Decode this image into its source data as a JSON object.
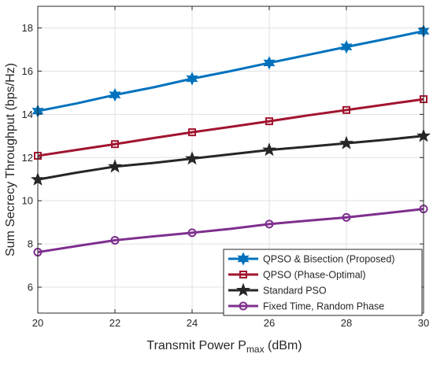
{
  "chart_data": {
    "type": "line",
    "title": "",
    "xlabel": "Transmit Power P",
    "xlabel_subscript": "max",
    "xlabel_suffix": " (dBm)",
    "ylabel": "Sum Secrecy Throughput (bps/Hz)",
    "x": [
      20,
      21,
      22,
      23,
      24,
      25,
      26,
      27,
      28,
      29,
      30
    ],
    "xlim": [
      20,
      30
    ],
    "ylim": [
      4.8,
      19
    ],
    "xticks": [
      "20",
      "22",
      "24",
      "26",
      "28",
      "30"
    ],
    "xtick_values": [
      20,
      22,
      24,
      26,
      28,
      30
    ],
    "yticks": [
      "6",
      "8",
      "10",
      "12",
      "14",
      "16",
      "18"
    ],
    "ytick_values": [
      6,
      8,
      10,
      12,
      14,
      16,
      18
    ],
    "grid": true,
    "legend_position": "bottom-right",
    "series": [
      {
        "name": "QPSO & Bisection (Proposed)",
        "color": "#0072bd",
        "marker": "hexagram",
        "values": [
          14.15,
          14.5,
          14.9,
          15.25,
          15.65,
          16.0,
          16.38,
          16.75,
          17.12,
          17.48,
          17.85
        ]
      },
      {
        "name": "QPSO (Phase-Optimal)",
        "color": "#a2142f",
        "marker": "square",
        "values": [
          12.08,
          12.35,
          12.62,
          12.9,
          13.17,
          13.42,
          13.68,
          13.95,
          14.2,
          14.45,
          14.7
        ]
      },
      {
        "name": "Standard PSO",
        "color": "#262626",
        "marker": "pentagram",
        "values": [
          10.98,
          11.3,
          11.58,
          11.75,
          11.95,
          12.15,
          12.35,
          12.5,
          12.66,
          12.82,
          13.0
        ]
      },
      {
        "name": "Fixed Time, Random Phase",
        "color": "#7e2f8e",
        "marker": "circle",
        "values": [
          7.62,
          7.9,
          8.17,
          8.35,
          8.52,
          8.7,
          8.92,
          9.08,
          9.23,
          9.42,
          9.62
        ]
      }
    ]
  }
}
